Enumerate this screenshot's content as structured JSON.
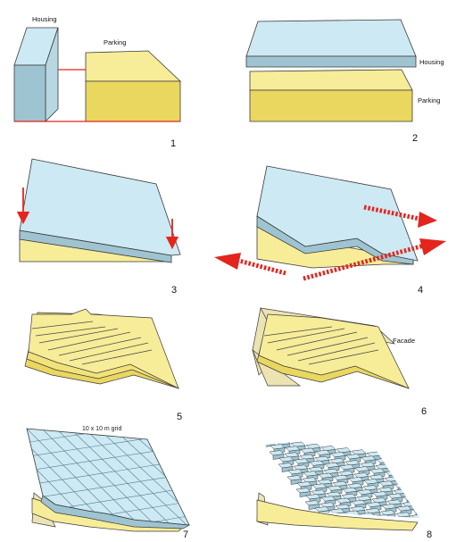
{
  "panels": [
    {
      "number": "1",
      "labels": {
        "housing": "Housing",
        "parking": "Parking"
      }
    },
    {
      "number": "2",
      "labels": {
        "housing": "Housing",
        "parking": "Parking"
      }
    },
    {
      "number": "3"
    },
    {
      "number": "4"
    },
    {
      "number": "5"
    },
    {
      "number": "6",
      "labels": {
        "facade": "Facade"
      }
    },
    {
      "number": "7",
      "labels": {
        "grid": "10 x 10 m grid"
      }
    },
    {
      "number": "8"
    }
  ],
  "colors": {
    "housing_top": "#cde9f3",
    "housing_side": "#9fc4d1",
    "parking_top": "#f7ec98",
    "parking_side": "#e9d760",
    "facade": "#ece3b3",
    "outline": "#3a3a3a",
    "arrow_red": "#e4251d"
  }
}
